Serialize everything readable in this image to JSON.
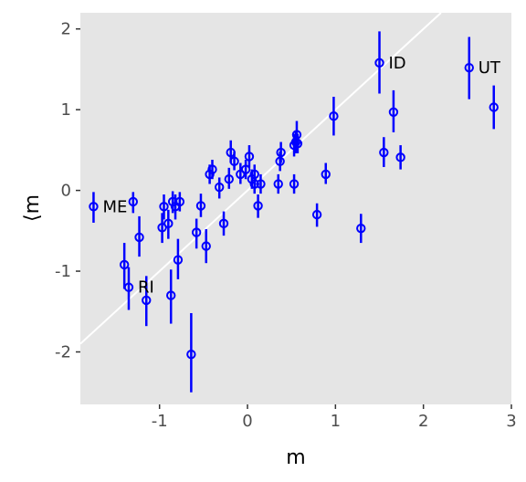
{
  "chart_data": {
    "type": "scatter",
    "title": "",
    "xlabel": "m",
    "ylabel": "⟨m",
    "xlim": [
      -1.9,
      3.0
    ],
    "ylim": [
      -2.65,
      2.2
    ],
    "xticks": [
      -1,
      0,
      1,
      2,
      3
    ],
    "xtick_labels": [
      "-1",
      "0",
      "1",
      "2",
      "3"
    ],
    "yticks": [
      -2,
      -1,
      0,
      1,
      2
    ],
    "ytick_labels": [
      "-2",
      "-1",
      "0",
      "1",
      "2"
    ],
    "grid": false,
    "background": "#e5e5e5",
    "point_color": "#0000ff",
    "reference_line": {
      "slope": 1,
      "intercept": 0,
      "color": "#ffffff"
    },
    "points": [
      {
        "x": -1.75,
        "y": -0.2,
        "lo": -0.4,
        "hi": -0.02
      },
      {
        "x": -1.3,
        "y": -0.14,
        "lo": -0.28,
        "hi": -0.02
      },
      {
        "x": -1.23,
        "y": -0.58,
        "lo": -0.82,
        "hi": -0.32
      },
      {
        "x": -1.4,
        "y": -0.92,
        "lo": -1.22,
        "hi": -0.65
      },
      {
        "x": -1.35,
        "y": -1.2,
        "lo": -1.48,
        "hi": -0.95
      },
      {
        "x": -1.15,
        "y": -1.36,
        "lo": -1.68,
        "hi": -1.06
      },
      {
        "x": -0.97,
        "y": -0.46,
        "lo": -0.65,
        "hi": -0.28
      },
      {
        "x": -0.95,
        "y": -0.2,
        "lo": -0.36,
        "hi": -0.05
      },
      {
        "x": -0.9,
        "y": -0.41,
        "lo": -0.6,
        "hi": -0.24
      },
      {
        "x": -0.87,
        "y": -1.3,
        "lo": -1.65,
        "hi": -0.98
      },
      {
        "x": -0.85,
        "y": -0.14,
        "lo": -0.28,
        "hi": -0.01
      },
      {
        "x": -0.82,
        "y": -0.2,
        "lo": -0.36,
        "hi": -0.05
      },
      {
        "x": -0.79,
        "y": -0.86,
        "lo": -1.1,
        "hi": -0.6
      },
      {
        "x": -0.77,
        "y": -0.14,
        "lo": -0.26,
        "hi": -0.02
      },
      {
        "x": -0.64,
        "y": -2.03,
        "lo": -2.5,
        "hi": -1.52
      },
      {
        "x": -0.58,
        "y": -0.52,
        "lo": -0.72,
        "hi": -0.35
      },
      {
        "x": -0.53,
        "y": -0.19,
        "lo": -0.33,
        "hi": -0.04
      },
      {
        "x": -0.47,
        "y": -0.69,
        "lo": -0.9,
        "hi": -0.48
      },
      {
        "x": -0.43,
        "y": 0.2,
        "lo": 0.08,
        "hi": 0.32
      },
      {
        "x": -0.4,
        "y": 0.26,
        "lo": 0.14,
        "hi": 0.38
      },
      {
        "x": -0.32,
        "y": 0.04,
        "lo": -0.1,
        "hi": 0.16
      },
      {
        "x": -0.27,
        "y": -0.41,
        "lo": -0.56,
        "hi": -0.26
      },
      {
        "x": -0.21,
        "y": 0.14,
        "lo": 0.02,
        "hi": 0.28
      },
      {
        "x": -0.19,
        "y": 0.47,
        "lo": 0.34,
        "hi": 0.62
      },
      {
        "x": -0.15,
        "y": 0.36,
        "lo": 0.25,
        "hi": 0.48
      },
      {
        "x": -0.08,
        "y": 0.2,
        "lo": 0.08,
        "hi": 0.34
      },
      {
        "x": -0.02,
        "y": 0.26,
        "lo": 0.14,
        "hi": 0.38
      },
      {
        "x": 0.02,
        "y": 0.42,
        "lo": 0.28,
        "hi": 0.56
      },
      {
        "x": 0.05,
        "y": 0.14,
        "lo": 0.02,
        "hi": 0.26
      },
      {
        "x": 0.08,
        "y": 0.2,
        "lo": 0.08,
        "hi": 0.32
      },
      {
        "x": 0.08,
        "y": 0.08,
        "lo": -0.04,
        "hi": 0.2
      },
      {
        "x": 0.12,
        "y": -0.19,
        "lo": -0.34,
        "hi": -0.05
      },
      {
        "x": 0.15,
        "y": 0.08,
        "lo": -0.04,
        "hi": 0.2
      },
      {
        "x": 0.35,
        "y": 0.08,
        "lo": -0.04,
        "hi": 0.2
      },
      {
        "x": 0.37,
        "y": 0.36,
        "lo": 0.24,
        "hi": 0.48
      },
      {
        "x": 0.38,
        "y": 0.47,
        "lo": 0.34,
        "hi": 0.6
      },
      {
        "x": 0.53,
        "y": 0.08,
        "lo": -0.04,
        "hi": 0.2
      },
      {
        "x": 0.53,
        "y": 0.56,
        "lo": 0.42,
        "hi": 0.7
      },
      {
        "x": 0.55,
        "y": 0.6,
        "lo": 0.46,
        "hi": 0.74
      },
      {
        "x": 0.56,
        "y": 0.69,
        "lo": 0.54,
        "hi": 0.86
      },
      {
        "x": 0.57,
        "y": 0.58,
        "lo": 0.46,
        "hi": 0.7
      },
      {
        "x": 0.79,
        "y": -0.3,
        "lo": -0.45,
        "hi": -0.16
      },
      {
        "x": 0.89,
        "y": 0.2,
        "lo": 0.08,
        "hi": 0.34
      },
      {
        "x": 0.98,
        "y": 0.92,
        "lo": 0.68,
        "hi": 1.16
      },
      {
        "x": 1.29,
        "y": -0.47,
        "lo": -0.65,
        "hi": -0.29
      },
      {
        "x": 1.5,
        "y": 1.58,
        "lo": 1.2,
        "hi": 1.97
      },
      {
        "x": 1.55,
        "y": 0.47,
        "lo": 0.29,
        "hi": 0.66
      },
      {
        "x": 1.66,
        "y": 0.97,
        "lo": 0.72,
        "hi": 1.24
      },
      {
        "x": 1.74,
        "y": 0.41,
        "lo": 0.26,
        "hi": 0.56
      },
      {
        "x": 2.52,
        "y": 1.52,
        "lo": 1.13,
        "hi": 1.9
      },
      {
        "x": 2.8,
        "y": 1.03,
        "lo": 0.76,
        "hi": 1.3
      }
    ],
    "annotations": [
      {
        "text": "ME",
        "x": -1.75,
        "y": -0.2
      },
      {
        "text": "RI",
        "x": -1.35,
        "y": -1.2
      },
      {
        "text": "ID",
        "x": 1.5,
        "y": 1.58
      },
      {
        "text": "UT",
        "x": 2.52,
        "y": 1.52
      }
    ]
  }
}
